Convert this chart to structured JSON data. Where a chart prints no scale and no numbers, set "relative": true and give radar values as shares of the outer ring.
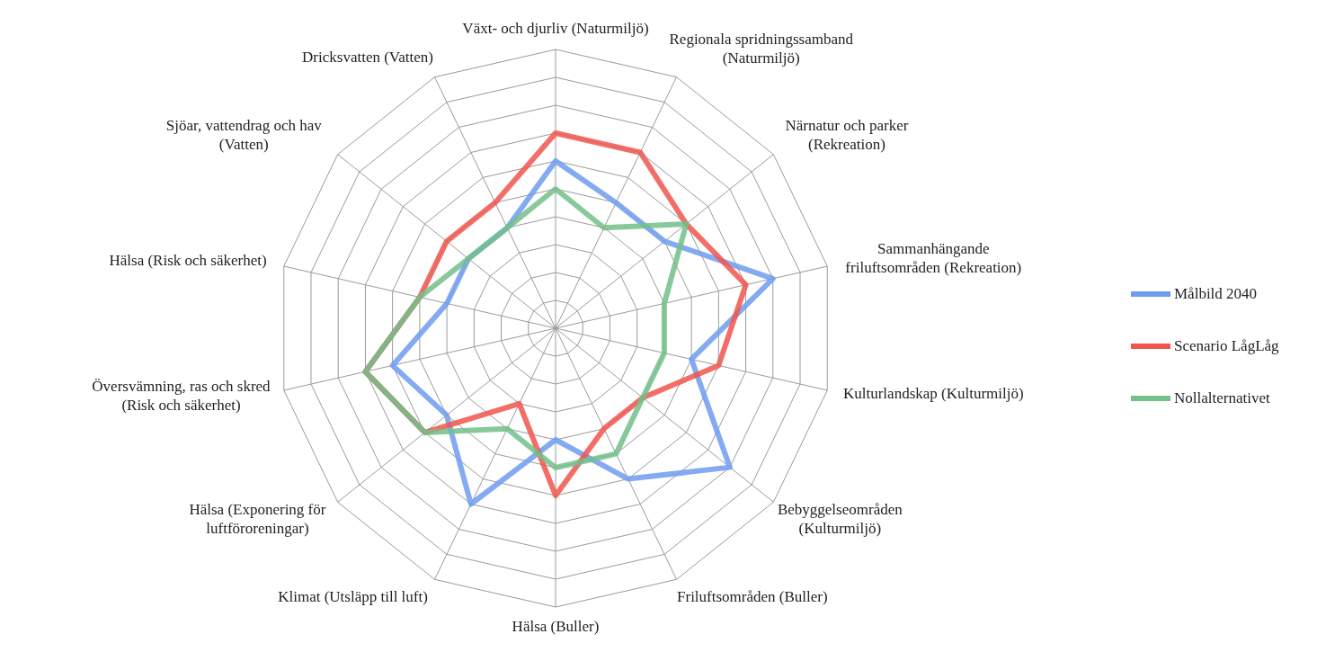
{
  "chart_data": {
    "type": "radar",
    "relative": true,
    "grid": true,
    "legend": "right",
    "categories": [
      "Växt- och djurliv (Naturmiljö)",
      "Regionala spridningssamband (Naturmiljö)",
      "Närnatur och parker (Rekreation)",
      "Sammanhängande friluftsområden (Rekreation)",
      "Kulturlandskap (Kulturmiljö)",
      "Bebyggelseområden (Kulturmiljö)",
      "Friluftsområden (Buller)",
      "Hälsa (Buller)",
      "Klimat (Utsläpp till luft)",
      "Hälsa (Exponering för luftföroreningar)",
      "Översvämning, ras och skred (Risk och säkerhet)",
      "Hälsa (Risk och säkerhet)",
      "Sjöar, vattendrag och hav (Vatten)",
      "Dricksvatten (Vatten)"
    ],
    "series": [
      {
        "name": "Målbild 2040",
        "color": "#6e9cf0",
        "values": [
          0.6,
          0.5,
          0.5,
          0.8,
          0.5,
          0.8,
          0.6,
          0.4,
          0.7,
          0.5,
          0.6,
          0.4,
          0.4,
          0.4
        ]
      },
      {
        "name": "Scenario LågLåg",
        "color": "#f0554f",
        "values": [
          0.7,
          0.7,
          0.6,
          0.7,
          0.6,
          0.4,
          0.4,
          0.6,
          0.3,
          0.6,
          0.7,
          0.5,
          0.5,
          0.5
        ]
      },
      {
        "name": "Nollalternativet",
        "color": "#72c08a",
        "values": [
          0.5,
          0.4,
          0.6,
          0.4,
          0.4,
          0.4,
          0.5,
          0.5,
          0.4,
          0.6,
          0.7,
          0.5,
          0.4,
          0.4
        ]
      }
    ]
  }
}
